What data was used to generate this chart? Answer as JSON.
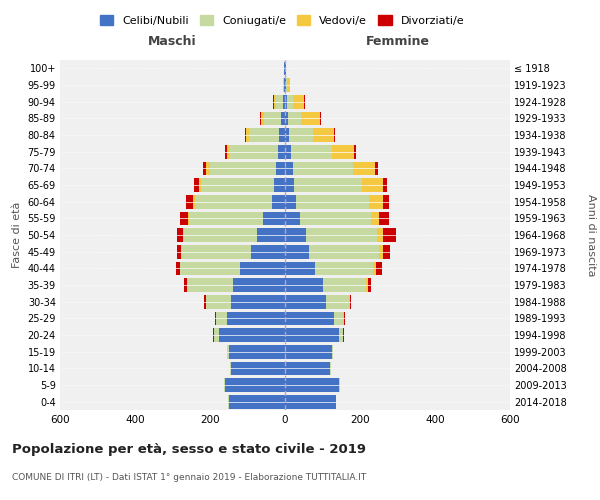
{
  "age_groups": [
    "0-4",
    "5-9",
    "10-14",
    "15-19",
    "20-24",
    "25-29",
    "30-34",
    "35-39",
    "40-44",
    "45-49",
    "50-54",
    "55-59",
    "60-64",
    "65-69",
    "70-74",
    "75-79",
    "80-84",
    "85-89",
    "90-94",
    "95-99",
    "100+"
  ],
  "birth_years": [
    "2014-2018",
    "2009-2013",
    "2004-2008",
    "1999-2003",
    "1994-1998",
    "1989-1993",
    "1984-1988",
    "1979-1983",
    "1974-1978",
    "1969-1973",
    "1964-1968",
    "1959-1963",
    "1954-1958",
    "1949-1953",
    "1944-1948",
    "1939-1943",
    "1934-1938",
    "1929-1933",
    "1924-1928",
    "1919-1923",
    "≤ 1918"
  ],
  "male": {
    "celibi": [
      150,
      160,
      145,
      150,
      175,
      155,
      145,
      140,
      120,
      90,
      75,
      60,
      35,
      30,
      25,
      20,
      15,
      10,
      5,
      2,
      2
    ],
    "coniugati": [
      1,
      2,
      3,
      5,
      15,
      30,
      65,
      120,
      160,
      185,
      195,
      195,
      205,
      195,
      175,
      130,
      80,
      45,
      20,
      3,
      0
    ],
    "vedovi": [
      0,
      0,
      0,
      0,
      0,
      0,
      0,
      1,
      1,
      2,
      2,
      3,
      5,
      5,
      10,
      5,
      10,
      8,
      5,
      1,
      0
    ],
    "divorziati": [
      0,
      0,
      0,
      0,
      2,
      3,
      5,
      8,
      10,
      12,
      15,
      22,
      18,
      12,
      8,
      5,
      3,
      3,
      2,
      0,
      0
    ]
  },
  "female": {
    "nubili": [
      135,
      145,
      120,
      125,
      145,
      130,
      110,
      100,
      80,
      65,
      55,
      40,
      30,
      25,
      20,
      15,
      10,
      8,
      5,
      3,
      2
    ],
    "coniugate": [
      1,
      1,
      2,
      4,
      10,
      25,
      60,
      115,
      155,
      185,
      190,
      190,
      195,
      180,
      160,
      110,
      65,
      35,
      15,
      2,
      0
    ],
    "vedove": [
      0,
      0,
      0,
      0,
      0,
      1,
      2,
      5,
      8,
      10,
      15,
      20,
      35,
      55,
      60,
      60,
      55,
      50,
      30,
      8,
      1
    ],
    "divorziate": [
      0,
      0,
      0,
      0,
      2,
      3,
      5,
      10,
      15,
      20,
      35,
      28,
      18,
      12,
      8,
      5,
      3,
      3,
      2,
      0,
      0
    ]
  },
  "colors": {
    "celibi": "#4472c4",
    "coniugati": "#c5d9a0",
    "vedovi": "#f5c842",
    "divorziati": "#cc0000"
  },
  "title": "Popolazione per età, sesso e stato civile - 2019",
  "subtitle": "COMUNE DI ITRI (LT) - Dati ISTAT 1° gennaio 2019 - Elaborazione TUTTITALIA.IT",
  "xlabel_left": "Maschi",
  "xlabel_right": "Femmine",
  "ylabel_left": "Fasce di età",
  "ylabel_right": "Anni di nascita",
  "xlim": 600,
  "bg_color": "#f0f0f0",
  "grid_color": "#cccccc",
  "legend_labels": [
    "Celibi/Nubili",
    "Coniugati/e",
    "Vedovi/e",
    "Divorziati/e"
  ]
}
